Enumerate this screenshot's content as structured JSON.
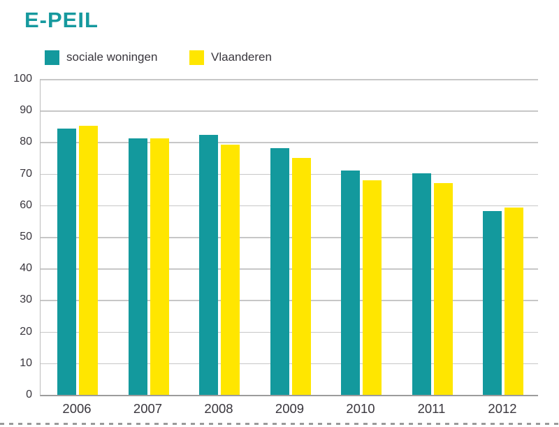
{
  "title": "E-PEIL",
  "legend": {
    "items": [
      {
        "label": "sociale woningen",
        "swatch": "teal-square"
      },
      {
        "label": "Vlaanderen",
        "swatch": "yellow-square"
      }
    ]
  },
  "chart_data": {
    "type": "bar",
    "title": "E-PEIL",
    "categories": [
      "2006",
      "2007",
      "2008",
      "2009",
      "2010",
      "2011",
      "2012"
    ],
    "series": [
      {
        "name": "sociale woningen",
        "color": "#13999D",
        "values": [
          84.3,
          81.2,
          82.3,
          78.0,
          71.0,
          70.1,
          58.1
        ]
      },
      {
        "name": "Vlaanderen",
        "color": "#FFE600",
        "values": [
          85.2,
          81.1,
          79.2,
          75.0,
          68.0,
          67.0,
          59.2
        ]
      }
    ],
    "ylim": [
      0,
      100
    ],
    "y_ticks": [
      100,
      90,
      80,
      70,
      60,
      50,
      40,
      30,
      20,
      10,
      0
    ],
    "grid": "horizontal",
    "legend_position": "top-left",
    "colors": {
      "title": "#16999E",
      "grid": "#C7C7C7",
      "axis_line": "#BDBDBD",
      "baseline": "#9C9C9C",
      "text": "#39363D"
    }
  }
}
